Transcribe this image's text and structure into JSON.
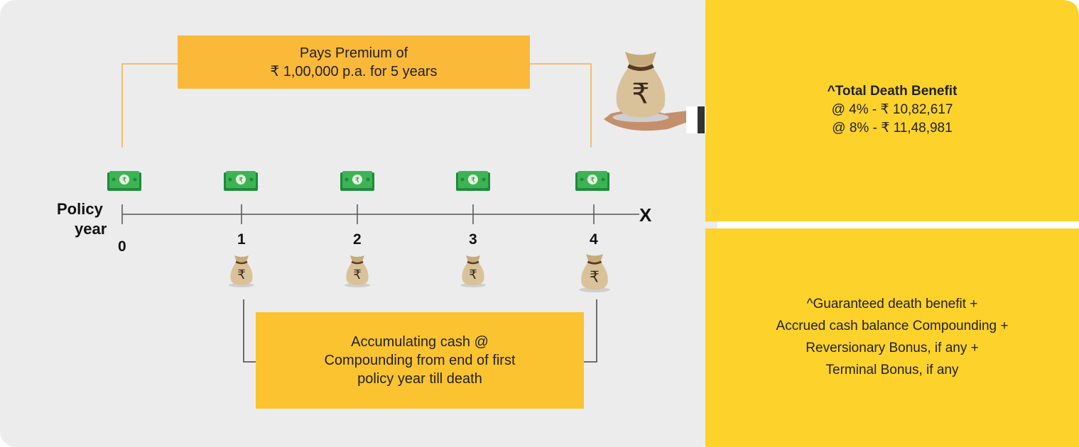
{
  "premium_box": {
    "lines": [
      "Pays Premium of",
      "₹ 1,00,000 p.a. for 5 years"
    ]
  },
  "timeline": {
    "axis_label": [
      "Policy",
      "year"
    ],
    "ticks": [
      "0",
      "1",
      "2",
      "3",
      "4"
    ],
    "end_marker": "X"
  },
  "accumulation_box": {
    "lines": [
      "Accumulating cash @",
      "Compounding from end of first",
      "policy year till death"
    ]
  },
  "total_death_benefit": {
    "title": "^Total Death Benefit",
    "lines": [
      "@ 4% - ₹ 10,82,617",
      "@ 8% - ₹ 11,48,981"
    ]
  },
  "benefit_formula": {
    "lines": [
      "^Guaranteed death benefit +",
      "Accrued cash balance Compounding +",
      "Reversionary Bonus, if any +",
      "Terminal Bonus, if any"
    ]
  }
}
